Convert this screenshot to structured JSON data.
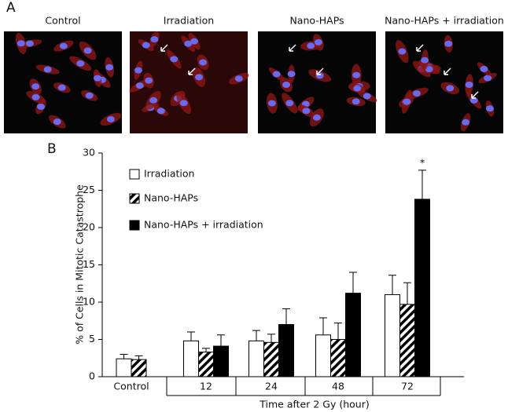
{
  "panel_a": {
    "label": "A",
    "images": [
      "Control",
      "Irradiation",
      "Nano-HAPs",
      "Nano-HAPs + irradiation"
    ]
  },
  "chart_data": {
    "type": "bar",
    "panel_label": "B",
    "y_label": "% of Cells in Mitotic Catastrophe",
    "x_label": "Time after 2 Gy (hour)",
    "categories": [
      "Control",
      "12",
      "24",
      "48",
      "72"
    ],
    "series": [
      {
        "name": "Irradiation",
        "color": "#ffffff",
        "values": [
          2.4,
          4.8,
          4.8,
          5.6,
          11.0
        ],
        "errors": [
          0.6,
          1.2,
          1.4,
          2.3,
          2.6
        ]
      },
      {
        "name": "Nano-HAPs",
        "color": "hatched",
        "values": [
          2.3,
          3.3,
          4.6,
          5.0,
          9.7
        ],
        "errors": [
          0.5,
          0.5,
          1.1,
          2.2,
          2.9
        ]
      },
      {
        "name": "Nano-HAPs + irradiation",
        "color": "#000000",
        "values": [
          null,
          4.1,
          7.0,
          11.2,
          23.8
        ],
        "errors": [
          null,
          1.5,
          2.1,
          2.8,
          3.9
        ]
      }
    ],
    "annotations": [
      {
        "text": "*",
        "category": "72",
        "series": "Nano-HAPs + irradiation"
      }
    ],
    "ylim": [
      0,
      30
    ],
    "yticks": [
      0,
      5,
      10,
      15,
      20,
      25,
      30
    ]
  }
}
